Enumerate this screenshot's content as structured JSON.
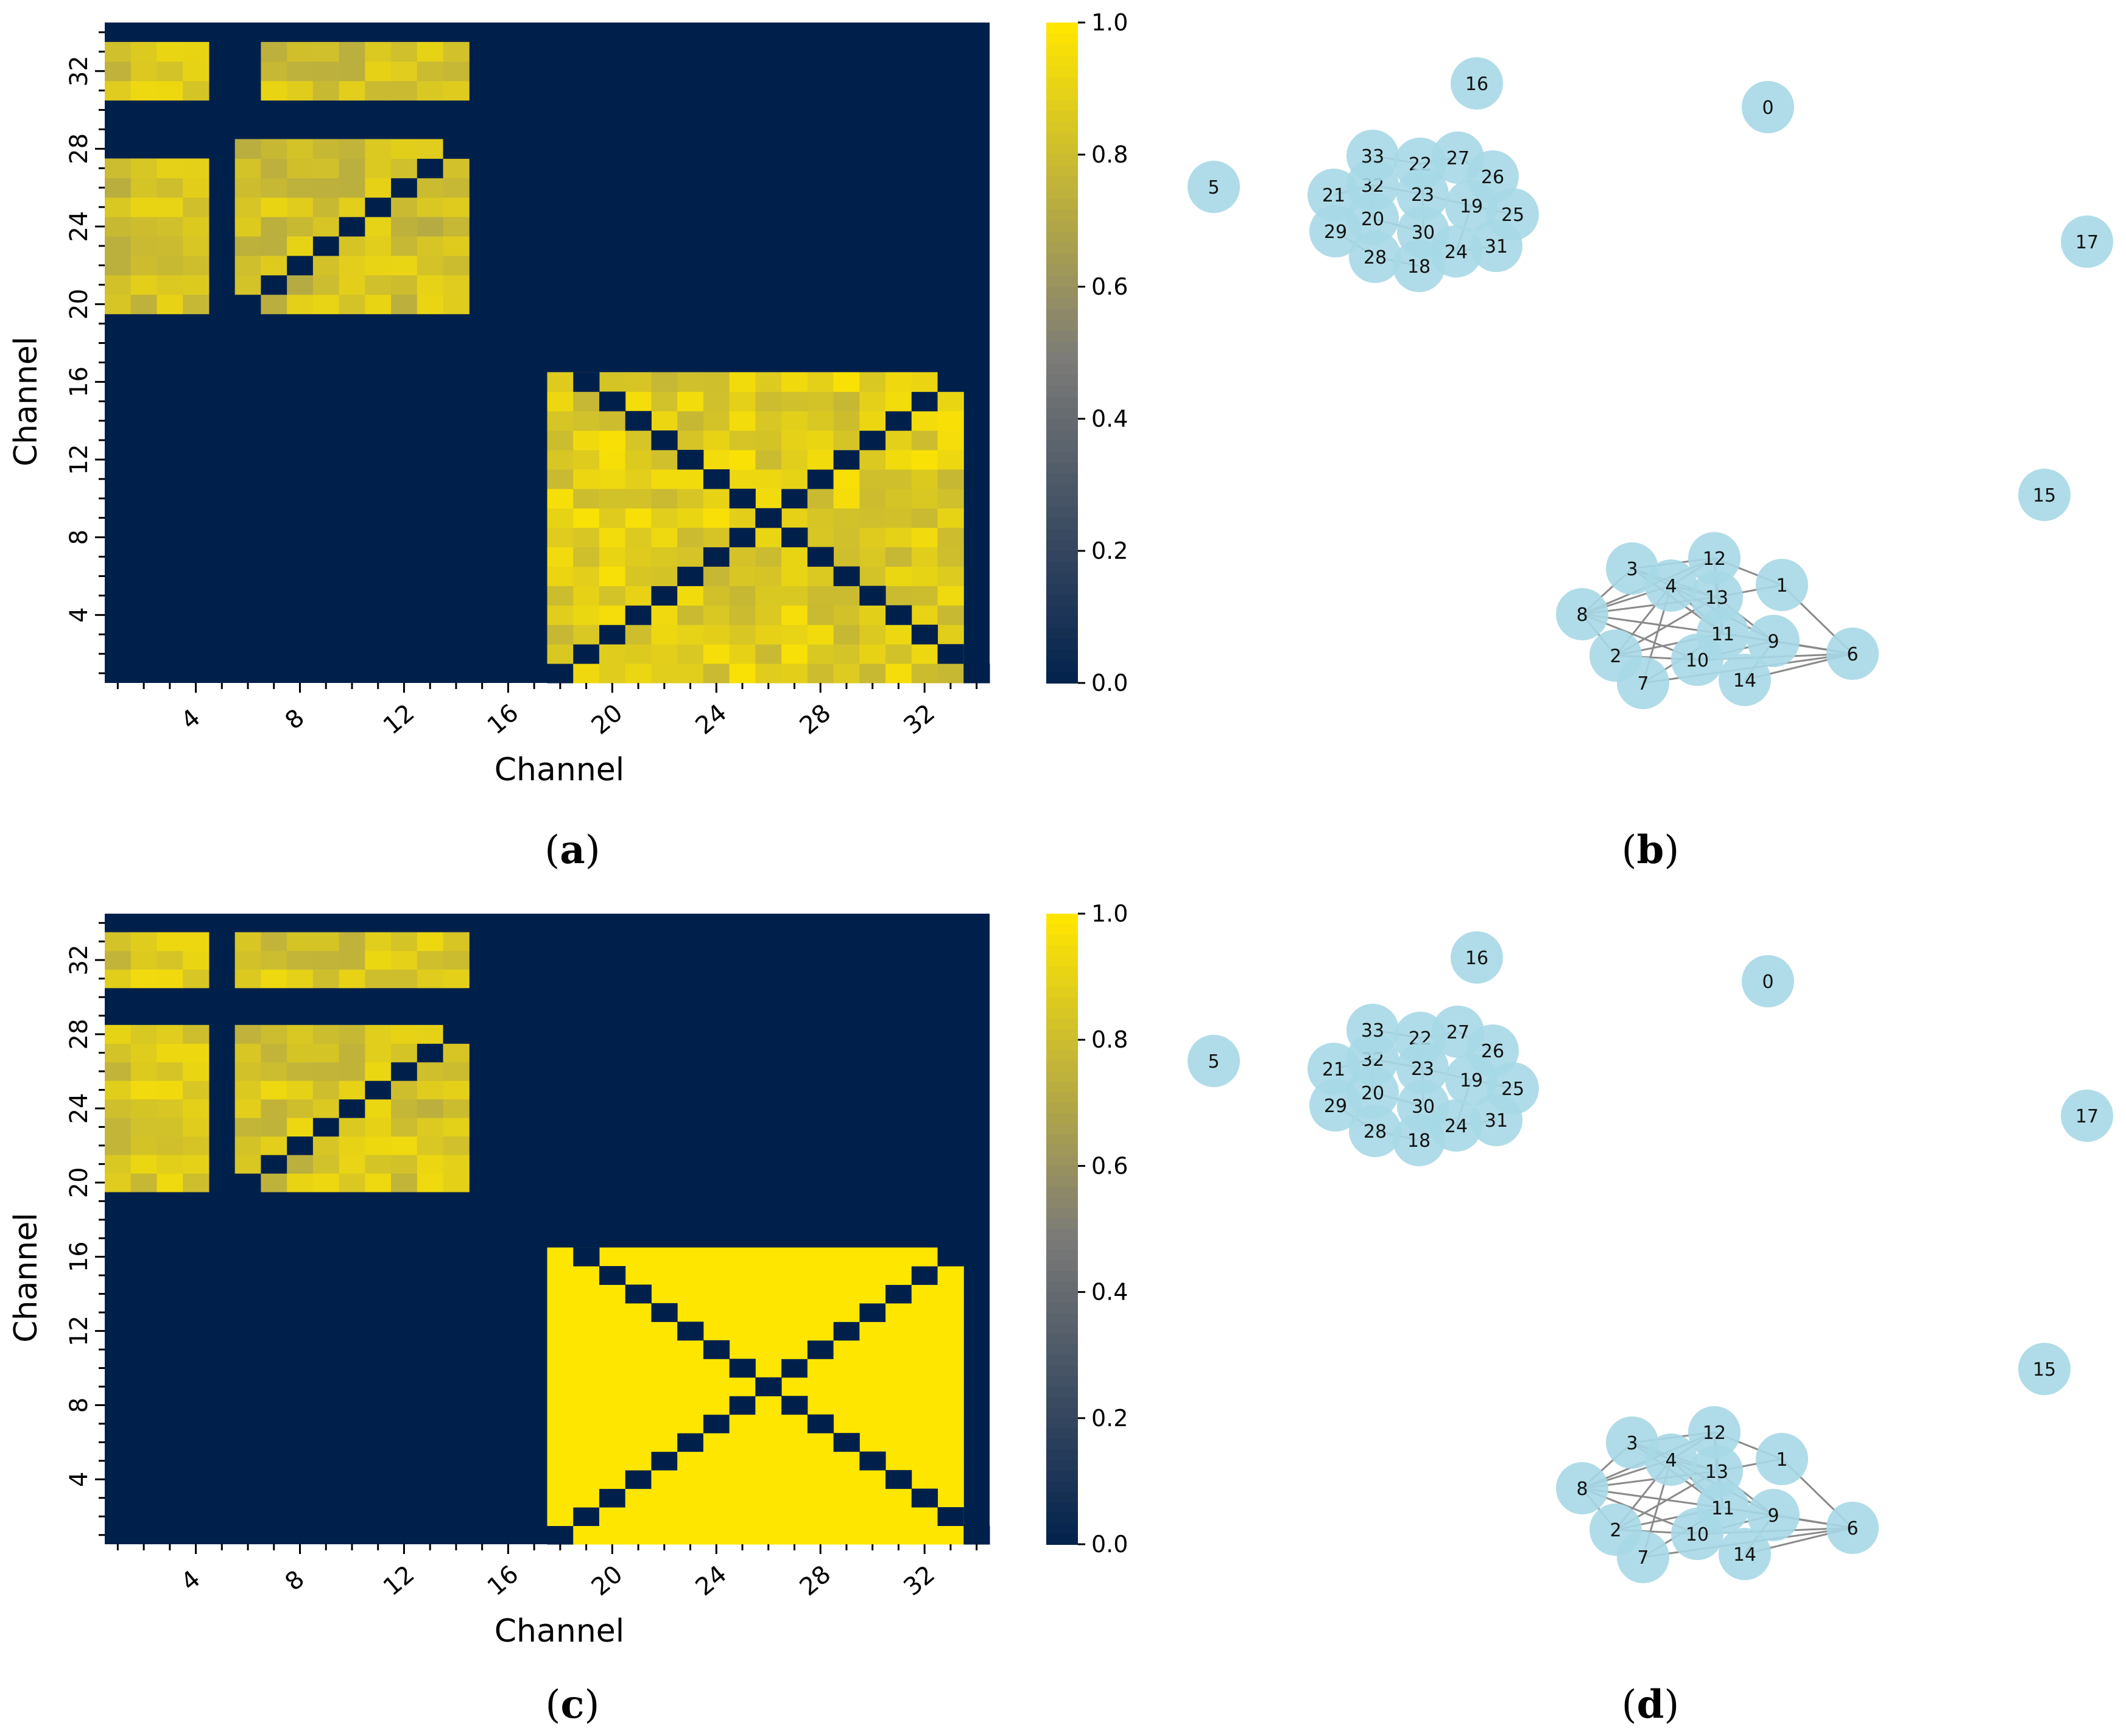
{
  "panels": [
    {
      "id": "a",
      "label_open": "(",
      "label_letter": "a",
      "label_close": ")"
    },
    {
      "id": "b",
      "label_open": "(",
      "label_letter": "b",
      "label_close": ")"
    },
    {
      "id": "c",
      "label_open": "(",
      "label_letter": "c",
      "label_close": ")"
    },
    {
      "id": "d",
      "label_open": "(",
      "label_letter": "d",
      "label_close": ")"
    }
  ],
  "colors": {
    "low": "#00204c",
    "mid": "#7c7b78",
    "high": "#ffe600",
    "node_fill": "#a6d8e6",
    "edge": "#8a8a8a"
  },
  "chart_data": [
    {
      "panel": "a",
      "type": "heatmap",
      "xlabel": "Channel",
      "ylabel": "Channel",
      "x_ticks": [
        "4",
        "8",
        "12",
        "16",
        "20",
        "24",
        "28",
        "32"
      ],
      "y_ticks": [
        "32",
        "28",
        "24",
        "20",
        "16",
        "12",
        "8",
        "4"
      ],
      "n": 34,
      "vmin": 0.0,
      "vmax": 1.0,
      "colorbar_ticks": [
        "1.0",
        "0.8",
        "0.6",
        "0.4",
        "0.2",
        "0.0"
      ],
      "colormap": "cividis",
      "blocks": [
        {
          "rows": [
            31,
            33
          ],
          "cols": [
            1,
            4
          ],
          "level": 0.85
        },
        {
          "rows": [
            31,
            33
          ],
          "cols": [
            7,
            14
          ],
          "level": 0.82
        },
        {
          "rows": [
            20,
            27
          ],
          "cols": [
            1,
            4
          ],
          "level": 0.83
        },
        {
          "rows": [
            20,
            28
          ],
          "cols": [
            6,
            14
          ],
          "level": 0.82
        },
        {
          "rows": [
            1,
            16
          ],
          "cols": [
            18,
            33
          ],
          "level": 0.88
        }
      ],
      "zero_diagonal": true
    },
    {
      "panel": "b",
      "type": "network",
      "nodes": [
        "0",
        "1",
        "2",
        "3",
        "4",
        "5",
        "6",
        "7",
        "8",
        "9",
        "10",
        "11",
        "12",
        "13",
        "14",
        "15",
        "16",
        "17",
        "18",
        "19",
        "20",
        "21",
        "22",
        "23",
        "24",
        "25",
        "26",
        "27",
        "28",
        "29",
        "30",
        "31",
        "32",
        "33"
      ]
    },
    {
      "panel": "c",
      "type": "heatmap",
      "xlabel": "Channel",
      "ylabel": "Channel",
      "x_ticks": [
        "4",
        "8",
        "12",
        "16",
        "20",
        "24",
        "28",
        "32"
      ],
      "y_ticks": [
        "32",
        "28",
        "24",
        "20",
        "16",
        "12",
        "8",
        "4"
      ],
      "n": 34,
      "vmin": 0.0,
      "vmax": 1.0,
      "colorbar_ticks": [
        "1.0",
        "0.8",
        "0.6",
        "0.4",
        "0.2",
        "0.0"
      ],
      "colormap": "cividis",
      "blocks": [
        {
          "rows": [
            31,
            33
          ],
          "cols": [
            1,
            4
          ],
          "level": 0.86
        },
        {
          "rows": [
            31,
            33
          ],
          "cols": [
            6,
            14
          ],
          "level": 0.84
        },
        {
          "rows": [
            20,
            28
          ],
          "cols": [
            1,
            4
          ],
          "level": 0.86
        },
        {
          "rows": [
            20,
            28
          ],
          "cols": [
            6,
            14
          ],
          "level": 0.84
        },
        {
          "rows": [
            1,
            16
          ],
          "cols": [
            18,
            33
          ],
          "level": 1.0
        }
      ],
      "zero_diagonal": true
    },
    {
      "panel": "d",
      "type": "network",
      "nodes": [
        "0",
        "1",
        "2",
        "3",
        "4",
        "5",
        "6",
        "7",
        "8",
        "9",
        "10",
        "11",
        "12",
        "13",
        "14",
        "15",
        "16",
        "17",
        "18",
        "19",
        "20",
        "21",
        "22",
        "23",
        "24",
        "25",
        "26",
        "27",
        "28",
        "29",
        "30",
        "31",
        "32",
        "33"
      ]
    }
  ]
}
